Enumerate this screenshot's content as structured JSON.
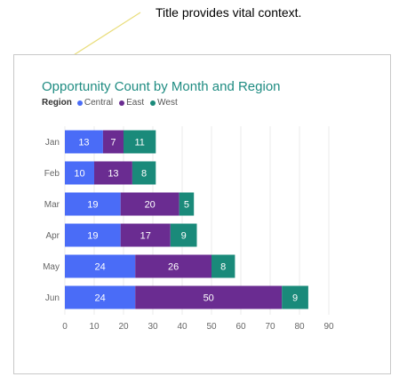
{
  "annotation": "Title provides vital context.",
  "colors": {
    "Central": "#4a6cf7",
    "East": "#6a2c91",
    "West": "#1a8a7a",
    "title": "#1f8c82",
    "callout": "#e9dd7a"
  },
  "chart_data": {
    "type": "bar",
    "orientation": "horizontal",
    "stacked": true,
    "title": "Opportunity Count by Month and Region",
    "legend_title": "Region",
    "legend_position": "top-left",
    "categories": [
      "Jan",
      "Feb",
      "Mar",
      "Apr",
      "May",
      "Jun"
    ],
    "series": [
      {
        "name": "Central",
        "values": [
          13,
          10,
          19,
          19,
          24,
          24
        ]
      },
      {
        "name": "East",
        "values": [
          7,
          13,
          20,
          17,
          26,
          50
        ]
      },
      {
        "name": "West",
        "values": [
          11,
          8,
          5,
          9,
          8,
          9
        ]
      }
    ],
    "xticks": [
      "0",
      "10",
      "20",
      "30",
      "40",
      "50",
      "60",
      "70",
      "80",
      "90"
    ],
    "xlim": [
      0,
      90
    ],
    "grid": true
  }
}
